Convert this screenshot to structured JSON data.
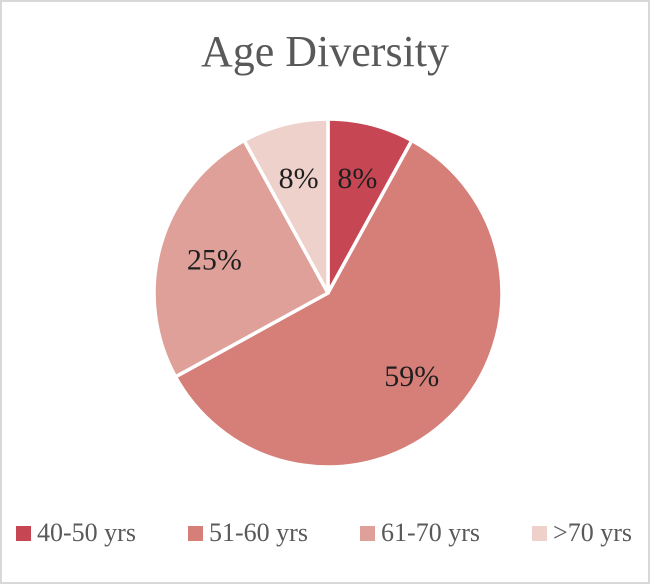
{
  "page": {
    "background_color": "#FFFFFF",
    "border_color": "#D8D8D8"
  },
  "chart_data": {
    "type": "pie",
    "title": "Age Diversity",
    "title_color": "#595959",
    "categories": [
      "40-50 yrs",
      "51-60 yrs",
      "61-70 yrs",
      ">70 yrs"
    ],
    "values": [
      8,
      59,
      25,
      8
    ],
    "unit": "percent",
    "slice_labels": [
      "8%",
      "59%",
      "25%",
      "8%"
    ],
    "colors": [
      "#C64653",
      "#D67E78",
      "#DEA098",
      "#EED1CB"
    ],
    "slice_label_color": "#1F1F1F",
    "slice_border_color": "#FFFFFF",
    "start_angle_deg": 0,
    "direction": "clockwise",
    "legend": {
      "position": "bottom",
      "text_color": "#595959"
    }
  }
}
